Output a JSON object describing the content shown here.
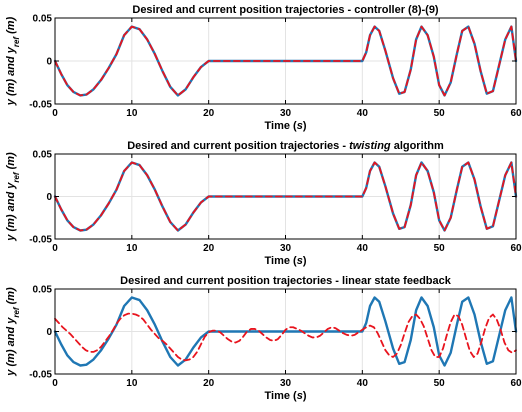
{
  "colors": {
    "reference": "#e8141e",
    "actual": "#1f77b4",
    "grid": "#e3e3e3",
    "axis": "#000000"
  },
  "chart_data": [
    {
      "type": "line",
      "title_parts": [
        {
          "text": "Desired and current position trajectories - controller (8)-(9)",
          "italic": false
        }
      ],
      "xlabel_parts": [
        {
          "text": "Time (",
          "italic": false
        },
        {
          "text": "s",
          "italic": true
        },
        {
          "text": ")",
          "italic": false
        }
      ],
      "ylabel_parts": [
        {
          "text": "y (m) and y",
          "italic": true
        },
        {
          "text": "ref",
          "italic": true,
          "sub": true
        },
        {
          "text": " (m)",
          "italic": true
        }
      ],
      "xlim": [
        0,
        60
      ],
      "ylim": [
        -0.05,
        0.05
      ],
      "xticks": [
        0,
        10,
        20,
        30,
        40,
        50,
        60
      ],
      "yticks": [
        0.05,
        0,
        -0.05
      ],
      "xtick_labels": [
        "0",
        "10",
        "20",
        "30",
        "40",
        "50",
        "60"
      ],
      "ytick_labels": [
        "0.05",
        "0",
        "-0.05"
      ],
      "grid": true,
      "x": [
        0,
        0.8,
        1.6,
        2.4,
        3.3,
        4.1,
        5,
        6,
        7,
        8,
        9,
        10,
        11,
        12,
        13,
        14,
        15,
        16,
        17,
        18,
        19,
        20,
        21,
        24,
        27,
        30,
        33,
        36,
        39,
        40,
        40.5,
        41,
        41.6,
        42.2,
        43,
        44,
        44.8,
        45.5,
        46.3,
        47,
        47.7,
        48.5,
        49.3,
        50,
        50.7,
        51.5,
        52.3,
        53,
        53.8,
        54.6,
        55.4,
        56.2,
        57,
        57.8,
        58.6,
        59.4,
        60
      ],
      "series": [
        {
          "y": [
            0,
            -0.015,
            -0.028,
            -0.036,
            -0.04,
            -0.039,
            -0.033,
            -0.022,
            -0.008,
            0.008,
            0.03,
            0.04,
            0.037,
            0.025,
            0.008,
            -0.012,
            -0.03,
            -0.04,
            -0.033,
            -0.019,
            -0.007,
            0,
            0,
            0,
            0,
            0,
            0,
            0,
            0,
            0,
            0.01,
            0.03,
            0.04,
            0.035,
            0.012,
            -0.02,
            -0.038,
            -0.036,
            -0.01,
            0.025,
            0.04,
            0.03,
            0.005,
            -0.028,
            -0.04,
            -0.025,
            0.008,
            0.035,
            0.04,
            0.02,
            -0.012,
            -0.038,
            -0.035,
            -0.005,
            0.025,
            0.04,
            0
          ]
        },
        {
          "y": [
            0,
            -0.015,
            -0.028,
            -0.036,
            -0.04,
            -0.039,
            -0.033,
            -0.022,
            -0.008,
            0.008,
            0.03,
            0.04,
            0.037,
            0.025,
            0.008,
            -0.012,
            -0.03,
            -0.04,
            -0.033,
            -0.019,
            -0.007,
            0,
            0,
            0,
            0,
            0,
            0,
            0,
            0,
            0,
            0.01,
            0.03,
            0.04,
            0.035,
            0.012,
            -0.02,
            -0.038,
            -0.036,
            -0.01,
            0.025,
            0.04,
            0.03,
            0.005,
            -0.028,
            -0.04,
            -0.025,
            0.008,
            0.035,
            0.04,
            0.02,
            -0.012,
            -0.038,
            -0.035,
            -0.005,
            0.025,
            0.04,
            0
          ]
        }
      ]
    },
    {
      "type": "line",
      "title_parts": [
        {
          "text": "Desired and current position trajectories - ",
          "italic": false
        },
        {
          "text": "twisting",
          "italic": true
        },
        {
          "text": " algorithm",
          "italic": false
        }
      ],
      "xlabel_parts": [
        {
          "text": "Time (",
          "italic": false
        },
        {
          "text": "s",
          "italic": true
        },
        {
          "text": ")",
          "italic": false
        }
      ],
      "ylabel_parts": [
        {
          "text": "y (m) and y",
          "italic": true
        },
        {
          "text": "ref",
          "italic": true,
          "sub": true
        },
        {
          "text": " (m)",
          "italic": true
        }
      ],
      "xlim": [
        0,
        60
      ],
      "ylim": [
        -0.05,
        0.05
      ],
      "xticks": [
        0,
        10,
        20,
        30,
        40,
        50,
        60
      ],
      "yticks": [
        0.05,
        0,
        -0.05
      ],
      "xtick_labels": [
        "0",
        "10",
        "20",
        "30",
        "40",
        "50",
        "60"
      ],
      "ytick_labels": [
        "0.05",
        "0",
        "-0.05"
      ],
      "grid": true,
      "x": [
        0,
        0.8,
        1.6,
        2.4,
        3.3,
        4.1,
        5,
        6,
        7,
        8,
        9,
        10,
        11,
        12,
        13,
        14,
        15,
        16,
        17,
        18,
        19,
        20,
        21,
        24,
        27,
        30,
        33,
        36,
        39,
        40,
        40.5,
        41,
        41.6,
        42.2,
        43,
        44,
        44.8,
        45.5,
        46.3,
        47,
        47.7,
        48.5,
        49.3,
        50,
        50.7,
        51.5,
        52.3,
        53,
        53.8,
        54.6,
        55.4,
        56.2,
        57,
        57.8,
        58.6,
        59.4,
        60
      ],
      "series": [
        {
          "y": [
            0,
            -0.015,
            -0.028,
            -0.036,
            -0.04,
            -0.039,
            -0.033,
            -0.022,
            -0.008,
            0.008,
            0.03,
            0.04,
            0.037,
            0.025,
            0.008,
            -0.012,
            -0.03,
            -0.04,
            -0.033,
            -0.019,
            -0.007,
            0,
            0,
            0,
            0,
            0,
            0,
            0,
            0,
            0,
            0.01,
            0.03,
            0.04,
            0.035,
            0.012,
            -0.02,
            -0.038,
            -0.036,
            -0.01,
            0.025,
            0.04,
            0.03,
            0.005,
            -0.028,
            -0.04,
            -0.025,
            0.008,
            0.035,
            0.04,
            0.02,
            -0.012,
            -0.038,
            -0.035,
            -0.005,
            0.025,
            0.04,
            0
          ]
        },
        {
          "y": [
            0,
            -0.015,
            -0.028,
            -0.036,
            -0.04,
            -0.039,
            -0.033,
            -0.022,
            -0.008,
            0.008,
            0.03,
            0.04,
            0.037,
            0.025,
            0.008,
            -0.012,
            -0.03,
            -0.04,
            -0.033,
            -0.019,
            -0.007,
            0,
            0,
            0,
            0,
            0,
            0,
            0,
            0,
            0,
            0.01,
            0.03,
            0.04,
            0.035,
            0.012,
            -0.02,
            -0.038,
            -0.036,
            -0.01,
            0.025,
            0.04,
            0.03,
            0.005,
            -0.028,
            -0.04,
            -0.025,
            0.008,
            0.035,
            0.04,
            0.02,
            -0.012,
            -0.038,
            -0.035,
            -0.005,
            0.025,
            0.04,
            0
          ]
        }
      ]
    },
    {
      "type": "line",
      "title_parts": [
        {
          "text": "Desired and current position trajectories - linear state feedback",
          "italic": false
        }
      ],
      "xlabel_parts": [
        {
          "text": "Time (",
          "italic": false
        },
        {
          "text": "s",
          "italic": true
        },
        {
          "text": ")",
          "italic": false
        }
      ],
      "ylabel_parts": [
        {
          "text": "y (m) and y",
          "italic": true
        },
        {
          "text": "ref",
          "italic": true,
          "sub": true
        },
        {
          "text": " (m)",
          "italic": true
        }
      ],
      "xlim": [
        0,
        60
      ],
      "ylim": [
        -0.05,
        0.05
      ],
      "xticks": [
        0,
        10,
        20,
        30,
        40,
        50,
        60
      ],
      "yticks": [
        0.05,
        0,
        -0.05
      ],
      "xtick_labels": [
        "0",
        "10",
        "20",
        "30",
        "40",
        "50",
        "60"
      ],
      "ytick_labels": [
        "0.05",
        "0",
        "-0.05"
      ],
      "grid": true,
      "series": [
        {
          "x": [
            0,
            0.8,
            1.6,
            2.4,
            3.3,
            4.1,
            5,
            6,
            7,
            8,
            9,
            10,
            11,
            12,
            13,
            14,
            15,
            16,
            17,
            18,
            19,
            20,
            21,
            24,
            27,
            30,
            33,
            36,
            39,
            40,
            40.5,
            41,
            41.6,
            42.2,
            43,
            44,
            44.8,
            45.5,
            46.3,
            47,
            47.7,
            48.5,
            49.3,
            50,
            50.7,
            51.5,
            52.3,
            53,
            53.8,
            54.6,
            55.4,
            56.2,
            57,
            57.8,
            58.6,
            59.4,
            60
          ],
          "y": [
            0,
            -0.015,
            -0.028,
            -0.036,
            -0.04,
            -0.039,
            -0.033,
            -0.022,
            -0.008,
            0.008,
            0.03,
            0.04,
            0.037,
            0.025,
            0.008,
            -0.012,
            -0.03,
            -0.04,
            -0.033,
            -0.019,
            -0.007,
            0,
            0,
            0,
            0,
            0,
            0,
            0,
            0,
            0,
            0.01,
            0.03,
            0.04,
            0.035,
            0.012,
            -0.02,
            -0.038,
            -0.036,
            -0.01,
            0.025,
            0.04,
            0.03,
            0.005,
            -0.028,
            -0.04,
            -0.025,
            0.008,
            0.035,
            0.04,
            0.02,
            -0.012,
            -0.038,
            -0.035,
            -0.005,
            0.025,
            0.04,
            0
          ]
        },
        {
          "x": [
            0,
            0.5,
            1,
            1.5,
            2,
            2.5,
            3,
            3.5,
            4,
            4.5,
            5,
            5.5,
            6,
            6.5,
            7,
            7.5,
            8,
            8.5,
            9,
            9.5,
            10,
            10.5,
            11,
            11.5,
            12,
            12.5,
            13,
            13.5,
            14,
            14.5,
            15,
            15.5,
            16,
            16.5,
            17,
            17.5,
            18,
            18.5,
            19,
            19.5,
            20,
            20.5,
            21,
            21.5,
            22,
            22.5,
            23,
            23.5,
            24,
            24.5,
            25,
            25.5,
            26,
            26.5,
            27,
            27.5,
            28,
            28.5,
            29,
            29.5,
            30,
            30.5,
            31,
            31.5,
            32,
            32.5,
            33,
            33.5,
            34,
            34.5,
            35,
            35.5,
            36,
            36.5,
            37,
            37.5,
            38,
            38.5,
            39,
            39.5,
            40,
            40.5,
            41,
            41.5,
            42,
            42.5,
            43,
            43.5,
            44,
            44.5,
            45,
            45.5,
            46,
            46.5,
            47,
            47.5,
            48,
            48.5,
            49,
            49.5,
            50,
            50.5,
            51,
            51.5,
            52,
            52.5,
            53,
            53.5,
            54,
            54.5,
            55,
            55.5,
            56,
            56.5,
            57,
            57.5,
            58,
            58.5,
            59,
            59.5,
            60
          ],
          "y": [
            0.015,
            0.01,
            0.005,
            0.001,
            -0.003,
            -0.008,
            -0.013,
            -0.018,
            -0.022,
            -0.024,
            -0.024,
            -0.022,
            -0.018,
            -0.012,
            -0.006,
            0.001,
            0.009,
            0.015,
            0.019,
            0.021,
            0.021,
            0.02,
            0.018,
            0.014,
            0.008,
            0.002,
            -0.003,
            -0.008,
            -0.011,
            -0.015,
            -0.02,
            -0.025,
            -0.03,
            -0.033,
            -0.034,
            -0.033,
            -0.03,
            -0.024,
            -0.015,
            -0.006,
            -0.001,
            0.001,
            0.001,
            -0.001,
            -0.005,
            -0.009,
            -0.012,
            -0.013,
            -0.011,
            -0.006,
            0,
            0.003,
            0.003,
            0.001,
            -0.003,
            -0.007,
            -0.01,
            -0.011,
            -0.009,
            -0.004,
            0.002,
            0.005,
            0.005,
            0.003,
            0.001,
            -0.002,
            -0.005,
            -0.007,
            -0.007,
            -0.005,
            -0.001,
            0.003,
            0.005,
            0.004,
            0.001,
            -0.002,
            -0.004,
            -0.005,
            -0.004,
            -0.001,
            0.002,
            0.005,
            0.007,
            0.005,
            -0.002,
            -0.012,
            -0.022,
            -0.028,
            -0.03,
            -0.026,
            -0.016,
            -0.002,
            0.011,
            0.018,
            0.02,
            0.015,
            0.006,
            -0.008,
            -0.022,
            -0.03,
            -0.03,
            -0.02,
            -0.004,
            0.011,
            0.02,
            0.018,
            0.008,
            -0.008,
            -0.023,
            -0.03,
            -0.026,
            -0.012,
            0.004,
            0.016,
            0.02,
            0.014,
            0.002,
            -0.013,
            -0.022,
            -0.025,
            -0.022
          ]
        }
      ]
    }
  ]
}
